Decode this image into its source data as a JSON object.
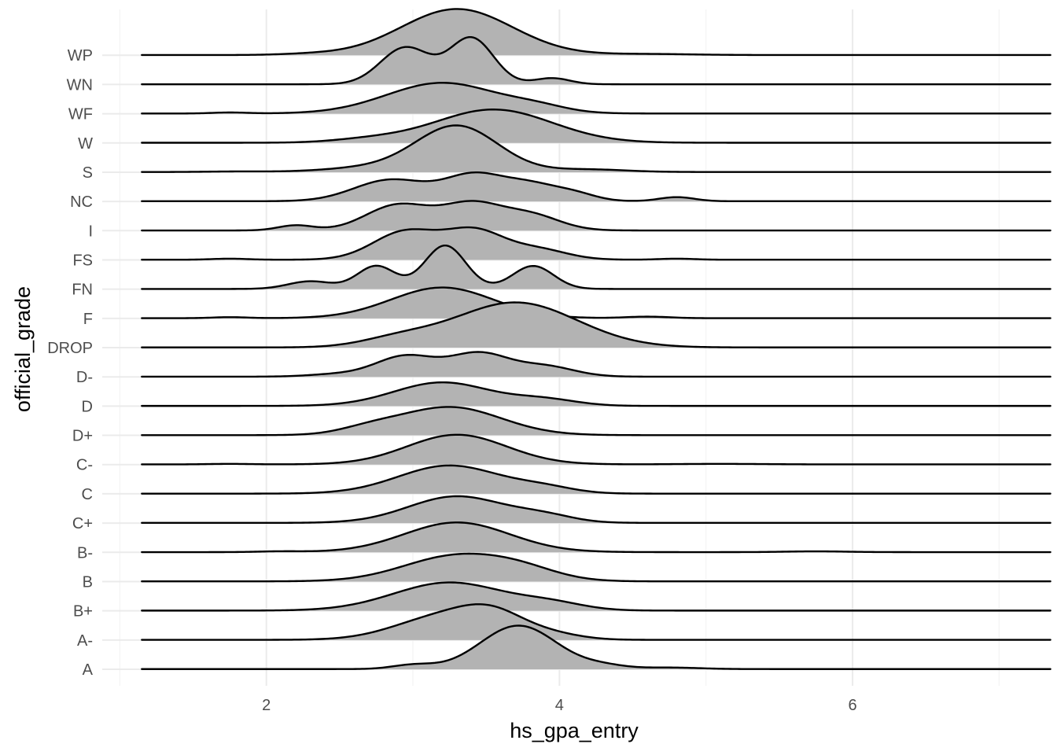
{
  "chart_data": {
    "type": "ridgeline",
    "xlabel": "hs_gpa_entry",
    "ylabel": "official_grade",
    "xlim": [
      0.88,
      7.32
    ],
    "x_ticks": [
      2,
      4,
      6
    ],
    "x_tick_labels": [
      "2",
      "4",
      "6"
    ],
    "x_range_of_curves": [
      1.15,
      7.35
    ],
    "grid": true,
    "fill_color": "#b3b3b3",
    "line_color": "#000000",
    "series": [
      {
        "name": "A",
        "peaks": [
          [
            3.0,
            0.08,
            0.14
          ],
          [
            3.72,
            0.85,
            0.26
          ],
          [
            4.3,
            0.06,
            0.15
          ],
          [
            4.75,
            0.03,
            0.2
          ]
        ]
      },
      {
        "name": "A-",
        "peaks": [
          [
            3.2,
            0.45,
            0.32
          ],
          [
            3.55,
            0.4,
            0.22
          ],
          [
            3.95,
            0.1,
            0.2
          ]
        ]
      },
      {
        "name": "B+",
        "peaks": [
          [
            3.25,
            0.55,
            0.38
          ],
          [
            3.95,
            0.12,
            0.22
          ]
        ]
      },
      {
        "name": "B",
        "peaks": [
          [
            3.3,
            0.5,
            0.36
          ],
          [
            3.75,
            0.16,
            0.25
          ]
        ]
      },
      {
        "name": "B-",
        "peaks": [
          [
            3.3,
            0.58,
            0.36
          ],
          [
            2.1,
            0.015,
            0.15
          ],
          [
            5.75,
            0.015,
            0.2
          ]
        ]
      },
      {
        "name": "C+",
        "peaks": [
          [
            3.3,
            0.52,
            0.33
          ],
          [
            3.9,
            0.12,
            0.2
          ]
        ]
      },
      {
        "name": "C",
        "peaks": [
          [
            3.25,
            0.55,
            0.35
          ],
          [
            3.9,
            0.1,
            0.2
          ]
        ]
      },
      {
        "name": "C-",
        "peaks": [
          [
            3.3,
            0.58,
            0.34
          ],
          [
            1.75,
            0.01,
            0.15
          ],
          [
            5.1,
            0.01,
            0.3
          ]
        ]
      },
      {
        "name": "D+",
        "peaks": [
          [
            3.25,
            0.55,
            0.35
          ],
          [
            2.7,
            0.1,
            0.2
          ]
        ]
      },
      {
        "name": "D",
        "peaks": [
          [
            3.2,
            0.46,
            0.33
          ],
          [
            3.9,
            0.12,
            0.22
          ]
        ]
      },
      {
        "name": "D-",
        "peaks": [
          [
            2.95,
            0.4,
            0.2
          ],
          [
            3.45,
            0.45,
            0.2
          ],
          [
            3.9,
            0.2,
            0.2
          ],
          [
            2.5,
            0.05,
            0.2
          ]
        ]
      },
      {
        "name": "DROP",
        "peaks": [
          [
            3.7,
            0.88,
            0.42
          ],
          [
            2.9,
            0.15,
            0.25
          ]
        ]
      },
      {
        "name": "F",
        "peaks": [
          [
            3.2,
            0.6,
            0.35
          ],
          [
            1.75,
            0.02,
            0.12
          ],
          [
            4.6,
            0.03,
            0.15
          ]
        ]
      },
      {
        "name": "FN",
        "peaks": [
          [
            3.22,
            0.85,
            0.14
          ],
          [
            2.75,
            0.45,
            0.13
          ],
          [
            3.82,
            0.45,
            0.14
          ],
          [
            2.3,
            0.15,
            0.15
          ]
        ]
      },
      {
        "name": "FS",
        "peaks": [
          [
            2.95,
            0.55,
            0.22
          ],
          [
            3.42,
            0.55,
            0.2
          ],
          [
            3.85,
            0.2,
            0.2
          ],
          [
            1.75,
            0.02,
            0.12
          ],
          [
            4.8,
            0.02,
            0.12
          ]
        ]
      },
      {
        "name": "I",
        "peaks": [
          [
            2.9,
            0.5,
            0.22
          ],
          [
            3.4,
            0.5,
            0.2
          ],
          [
            3.8,
            0.3,
            0.2
          ],
          [
            2.2,
            0.1,
            0.12
          ]
        ]
      },
      {
        "name": "NC",
        "peaks": [
          [
            2.85,
            0.42,
            0.25
          ],
          [
            3.42,
            0.5,
            0.2
          ],
          [
            3.8,
            0.3,
            0.18
          ],
          [
            4.1,
            0.14,
            0.15
          ],
          [
            4.8,
            0.08,
            0.12
          ]
        ]
      },
      {
        "name": "S",
        "peaks": [
          [
            3.3,
            0.9,
            0.28
          ],
          [
            2.7,
            0.08,
            0.3
          ],
          [
            4.2,
            0.05,
            0.25
          ],
          [
            1.8,
            0.01,
            0.2
          ]
        ]
      },
      {
        "name": "W",
        "peaks": [
          [
            3.55,
            0.65,
            0.4
          ],
          [
            2.7,
            0.06,
            0.25
          ]
        ]
      },
      {
        "name": "WF",
        "peaks": [
          [
            3.2,
            0.6,
            0.38
          ],
          [
            1.75,
            0.02,
            0.12
          ],
          [
            3.85,
            0.1,
            0.2
          ]
        ]
      },
      {
        "name": "WN",
        "peaks": [
          [
            2.95,
            0.72,
            0.17
          ],
          [
            3.4,
            0.9,
            0.15
          ],
          [
            3.95,
            0.12,
            0.12
          ]
        ]
      },
      {
        "name": "WP",
        "peaks": [
          [
            3.3,
            0.9,
            0.38
          ],
          [
            2.3,
            0.02,
            0.2
          ],
          [
            4.6,
            0.02,
            0.3
          ]
        ]
      }
    ]
  }
}
